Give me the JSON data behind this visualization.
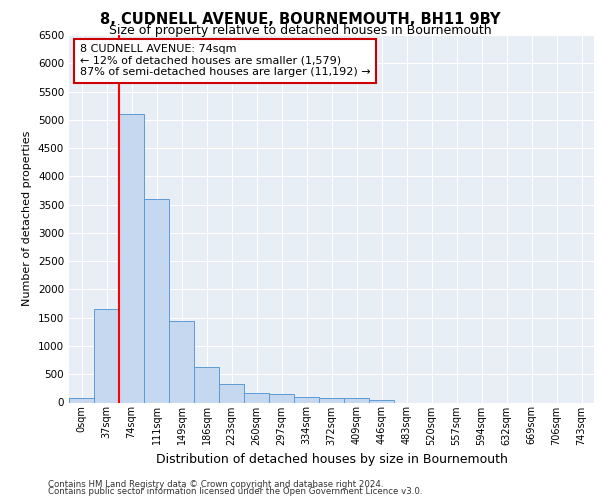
{
  "title": "8, CUDNELL AVENUE, BOURNEMOUTH, BH11 9BY",
  "subtitle": "Size of property relative to detached houses in Bournemouth",
  "xlabel": "Distribution of detached houses by size in Bournemouth",
  "ylabel": "Number of detached properties",
  "bin_labels": [
    "0sqm",
    "37sqm",
    "74sqm",
    "111sqm",
    "149sqm",
    "186sqm",
    "223sqm",
    "260sqm",
    "297sqm",
    "334sqm",
    "372sqm",
    "409sqm",
    "446sqm",
    "483sqm",
    "520sqm",
    "557sqm",
    "594sqm",
    "632sqm",
    "669sqm",
    "706sqm",
    "743sqm"
  ],
  "bin_values": [
    75,
    1650,
    5100,
    3600,
    1450,
    625,
    325,
    175,
    150,
    100,
    75,
    75,
    50,
    0,
    0,
    0,
    0,
    0,
    0,
    0,
    0
  ],
  "bar_color": "#c5d8f0",
  "bar_edge_color": "#5b9bd5",
  "red_line_bar_index": 2,
  "annotation_text": "8 CUDNELL AVENUE: 74sqm\n← 12% of detached houses are smaller (1,579)\n87% of semi-detached houses are larger (11,192) →",
  "annotation_box_color": "#ffffff",
  "annotation_box_edge_color": "#cc0000",
  "ylim": [
    0,
    6500
  ],
  "yticks": [
    0,
    500,
    1000,
    1500,
    2000,
    2500,
    3000,
    3500,
    4000,
    4500,
    5000,
    5500,
    6000,
    6500
  ],
  "background_color": "#e8eef6",
  "grid_color": "#ffffff",
  "footer_line1": "Contains HM Land Registry data © Crown copyright and database right 2024.",
  "footer_line2": "Contains public sector information licensed under the Open Government Licence v3.0."
}
